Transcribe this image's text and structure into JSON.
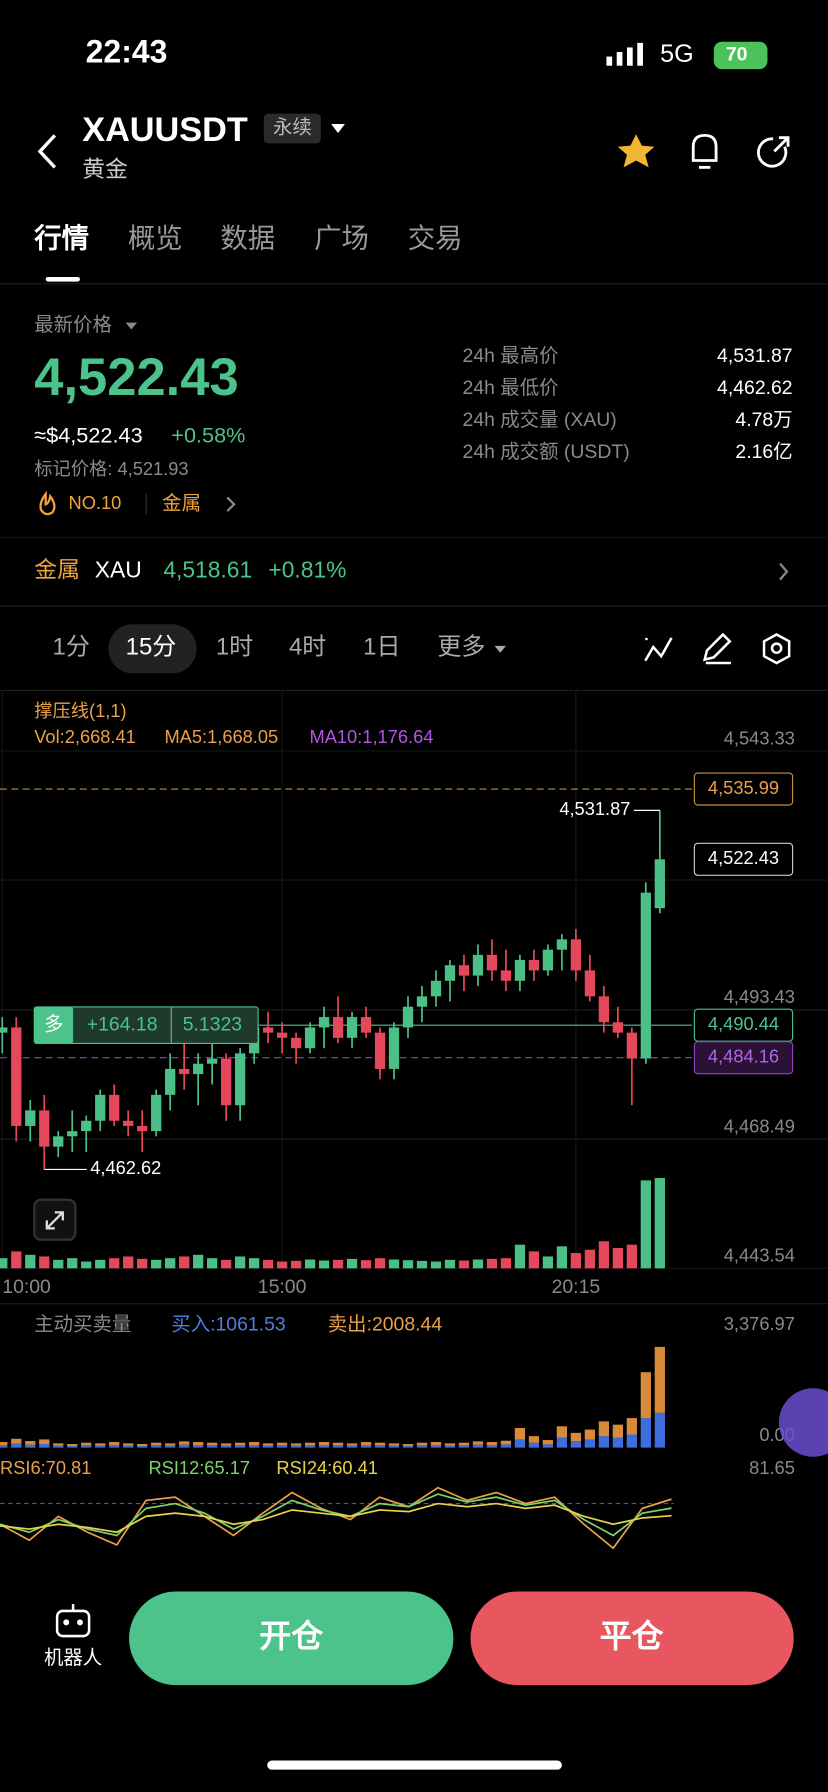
{
  "status": {
    "time": "22:43",
    "network": "5G",
    "battery": "70"
  },
  "header": {
    "symbol": "XAUUSDT",
    "contract": "永续",
    "name": "黄金"
  },
  "tabs": [
    "行情",
    "概览",
    "数据",
    "广场",
    "交易"
  ],
  "ticker": {
    "price_label": "最新价格",
    "price": "4,522.43",
    "usd_price": "≈$4,522.43",
    "change": "+0.58%",
    "mark_price": "标记价格: 4,521.93",
    "rank": "NO.10",
    "sector": "金属"
  },
  "stats": [
    {
      "label": "24h 最高价",
      "value": "4,531.87"
    },
    {
      "label": "24h 最低价",
      "value": "4,462.62"
    },
    {
      "label": "24h 成交量 (XAU)",
      "value": "4.78万"
    },
    {
      "label": "24h 成交额 (USDT)",
      "value": "2.16亿"
    }
  ],
  "related": {
    "sector": "金属",
    "symbol": "XAU",
    "price": "4,518.61",
    "change": "+0.81%"
  },
  "intervals": [
    "1分",
    "15分",
    "1时",
    "4时",
    "1日",
    "更多"
  ],
  "chart": {
    "type": "candlestick",
    "indicator": "撑压线(1,1)",
    "vol_legend": "Vol:2,668.41",
    "ma5_legend": "MA5:1,668.05",
    "ma10_legend": "MA10:1,176.64",
    "ylim": [
      4443.54,
      4543.33
    ],
    "yticks": [
      {
        "value": 4543.33,
        "label": "4,543.33"
      },
      {
        "value": 4493.43,
        "label": "4,493.43"
      },
      {
        "value": 4468.49,
        "label": "4,468.49"
      },
      {
        "value": 4443.54,
        "label": "4,443.54"
      }
    ],
    "xticks": [
      {
        "value": 0,
        "label": "10:00"
      },
      {
        "value": 20,
        "label": "15:00"
      },
      {
        "value": 41,
        "label": "20:15"
      }
    ],
    "candles": {
      "open": [
        4489,
        4490,
        4471,
        4474,
        4467,
        4469,
        4470,
        4472,
        4477,
        4472,
        4471,
        4470,
        4477,
        4482,
        4481,
        4483,
        4484,
        4475,
        4485,
        4490,
        4489,
        4488,
        4486,
        4490,
        4492,
        4488,
        4492,
        4489,
        4482,
        4490,
        4494,
        4496,
        4499,
        4502,
        4500,
        4504,
        4501,
        4499,
        4503,
        4501,
        4505,
        4507,
        4501,
        4496,
        4491,
        4489,
        4484,
        4513
      ],
      "high": [
        4492,
        4492,
        4476,
        4477,
        4470,
        4474,
        4473,
        4478,
        4479,
        4474,
        4474,
        4478,
        4485,
        4488,
        4485,
        4488,
        4485,
        4486,
        4492,
        4493,
        4491,
        4489,
        4491,
        4494,
        4496,
        4493,
        4494,
        4490,
        4491,
        4496,
        4498,
        4501,
        4503,
        4504,
        4506,
        4507,
        4505,
        4504,
        4505,
        4506,
        4508,
        4509,
        4504,
        4498,
        4494,
        4490,
        4518,
        4531.87
      ],
      "low": [
        4485,
        4468,
        4468,
        4462.62,
        4465,
        4466,
        4466,
        4470,
        4471,
        4469,
        4466,
        4469,
        4474,
        4478,
        4475,
        4479,
        4472,
        4472,
        4483,
        4487,
        4485,
        4483,
        4485,
        4486,
        4487,
        4486,
        4488,
        4480,
        4480,
        4488,
        4491,
        4494,
        4495,
        4497,
        4498,
        4499,
        4497,
        4497,
        4499,
        4500,
        4501,
        4499,
        4495,
        4489,
        4488,
        4475,
        4483,
        4512
      ],
      "close": [
        4490,
        4471,
        4474,
        4467,
        4469,
        4470,
        4472,
        4477,
        4472,
        4471,
        4470,
        4477,
        4482,
        4481,
        4483,
        4484,
        4475,
        4485,
        4490,
        4489,
        4488,
        4486,
        4490,
        4492,
        4488,
        4492,
        4489,
        4482,
        4490,
        4494,
        4496,
        4499,
        4502,
        4500,
        4504,
        4501,
        4499,
        4503,
        4501,
        4505,
        4507,
        4501,
        4496,
        4491,
        4489,
        4484,
        4516,
        4522.43
      ]
    },
    "volume": [
      300,
      500,
      400,
      350,
      250,
      300,
      200,
      250,
      300,
      350,
      280,
      250,
      300,
      350,
      400,
      300,
      250,
      350,
      300,
      250,
      200,
      220,
      260,
      230,
      250,
      280,
      240,
      300,
      260,
      240,
      220,
      200,
      250,
      230,
      260,
      280,
      300,
      700,
      500,
      350,
      650,
      450,
      550,
      800,
      600,
      700,
      2600,
      2668.41
    ],
    "vol_ylim": [
      0,
      2700
    ],
    "resistance": {
      "value": 4535.99,
      "label": "4,535.99"
    },
    "last_price": {
      "value": 4522.43,
      "label": "4,522.43"
    },
    "support": {
      "value": 4484.16,
      "label": "4,484.16"
    },
    "position": {
      "value": 4490.44,
      "label": "4,490.44",
      "side": "多",
      "pnl": "+164.18",
      "size": "5.1323"
    },
    "high_marker": {
      "value": 4531.87,
      "label": "4,531.87"
    },
    "low_marker": {
      "value": 4462.62,
      "label": "4,462.62"
    }
  },
  "flow": {
    "title": "主动买卖量",
    "buy_legend": "买入:1061.53",
    "sell_legend": "卖出:2008.44",
    "ylim": [
      0,
      3376.97
    ],
    "yticks": [
      {
        "value": 3376.97,
        "label": "3,376.97"
      },
      {
        "value": 0,
        "label": "0.00"
      }
    ],
    "buy": [
      80,
      120,
      90,
      110,
      60,
      50,
      70,
      60,
      80,
      60,
      50,
      70,
      60,
      90,
      80,
      70,
      60,
      70,
      80,
      60,
      70,
      60,
      70,
      80,
      70,
      60,
      80,
      70,
      60,
      50,
      70,
      80,
      60,
      70,
      90,
      80,
      100,
      250,
      150,
      100,
      300,
      200,
      250,
      350,
      300,
      400,
      900,
      1061.53
    ],
    "sell": [
      90,
      150,
      110,
      140,
      70,
      60,
      80,
      70,
      90,
      70,
      60,
      80,
      70,
      100,
      90,
      80,
      70,
      80,
      90,
      70,
      80,
      70,
      80,
      90,
      80,
      70,
      90,
      80,
      70,
      60,
      80,
      90,
      70,
      80,
      100,
      90,
      110,
      350,
      200,
      130,
      350,
      250,
      300,
      450,
      400,
      500,
      1400,
      2008.44
    ]
  },
  "rsi": {
    "ylim": [
      35,
      81.65
    ],
    "yticks": [
      {
        "value": 81.65,
        "label": "81.65"
      }
    ],
    "series": [
      {
        "name": "RSI6:70.81",
        "color": "#e8a04a",
        "values": [
          55,
          45,
          60,
          50,
          42,
          70,
          72,
          60,
          48,
          62,
          75,
          65,
          58,
          72,
          66,
          78,
          70,
          75,
          68,
          72,
          55,
          40,
          65,
          70.81
        ]
      },
      {
        "name": "RSI12:65.17",
        "color": "#7ed36a",
        "values": [
          55,
          50,
          58,
          52,
          48,
          65,
          68,
          62,
          52,
          60,
          70,
          64,
          60,
          68,
          66,
          74,
          69,
          72,
          67,
          70,
          58,
          48,
          62,
          65.17
        ]
      },
      {
        "name": "RSI24:60.41",
        "color": "#e8d24a",
        "values": [
          54,
          52,
          55,
          53,
          50,
          60,
          62,
          60,
          55,
          58,
          64,
          62,
          60,
          64,
          63,
          68,
          66,
          68,
          65,
          67,
          60,
          55,
          59,
          60.41
        ]
      }
    ]
  },
  "actions": {
    "bot": "机器人",
    "open": "开仓",
    "close": "平仓"
  }
}
